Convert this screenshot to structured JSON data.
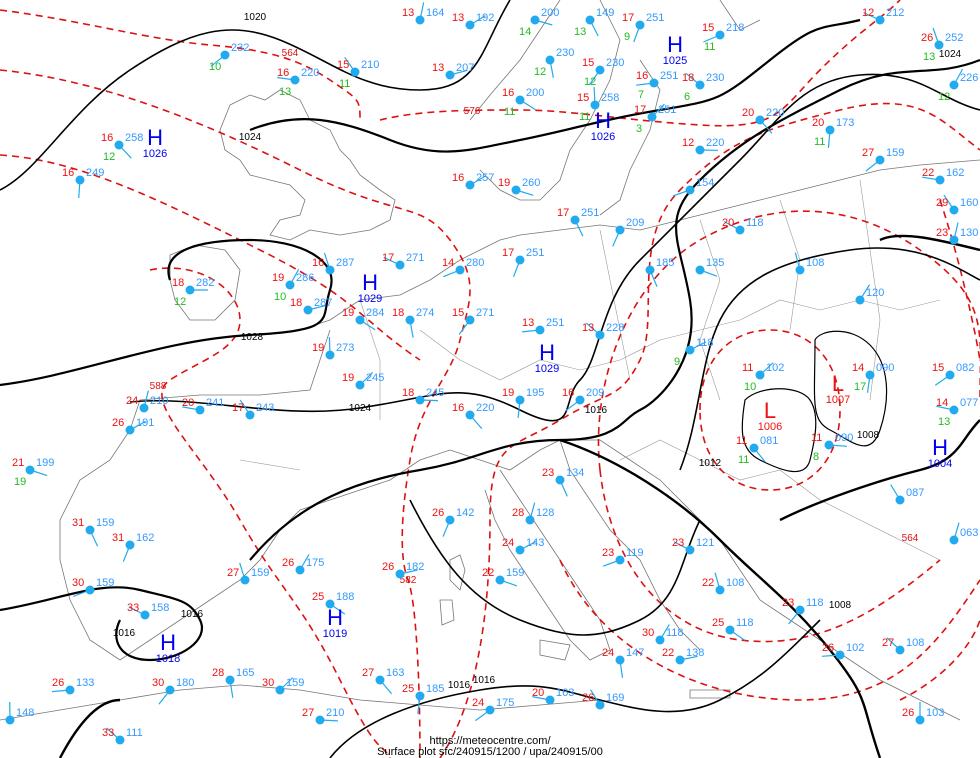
{
  "footer": {
    "url": "https://meteocentre.com/",
    "caption": "Surface plot sfc/240915/1200 / upa/240915/00"
  },
  "colors": {
    "temperature": "#ee1111",
    "dewpoint": "#22bb22",
    "pressure": "#3399ff",
    "station": "#22aaee",
    "isobar": "#000000",
    "thickness": "#dd1111",
    "coastline": "#777777",
    "high": "#0000ee",
    "low": "#ee1111",
    "weather_symbol": "#ee00ee"
  },
  "isobar_labels": [
    "1020",
    "1024",
    "1028",
    "1024",
    "1016",
    "1016",
    "1012",
    "1008",
    "1008",
    "1016",
    "1016",
    "1016",
    "1024"
  ],
  "thickness_labels": [
    "564",
    "576",
    "588",
    "582",
    "564"
  ],
  "pressure_centers": [
    {
      "type": "H",
      "value": "1026"
    },
    {
      "type": "H",
      "value": "1025"
    },
    {
      "type": "H",
      "value": "1026"
    },
    {
      "type": "H",
      "value": "1029"
    },
    {
      "type": "H",
      "value": "1029"
    },
    {
      "type": "H",
      "value": "1019"
    },
    {
      "type": "H",
      "value": "1018"
    },
    {
      "type": "H",
      "value": "1004"
    },
    {
      "type": "L",
      "value": "1006"
    },
    {
      "type": "L",
      "value": "1007"
    }
  ],
  "stations": [
    {
      "t": 18,
      "d": 12,
      "p": "282"
    },
    {
      "t": 16,
      "d": 12,
      "p": "258"
    },
    {
      "t": 16,
      "d": null,
      "p": "249"
    },
    {
      "t": null,
      "d": 10,
      "p": "232"
    },
    {
      "t": 16,
      "d": 13,
      "p": "220"
    },
    {
      "t": 15,
      "d": 11,
      "p": "210"
    },
    {
      "t": 13,
      "d": null,
      "p": "164"
    },
    {
      "t": 13,
      "d": null,
      "p": "192"
    },
    {
      "t": null,
      "d": 14,
      "p": "200"
    },
    {
      "t": null,
      "d": 13,
      "p": "149"
    },
    {
      "t": 17,
      "d": 9,
      "p": "251"
    },
    {
      "t": 15,
      "d": 11,
      "p": "218"
    },
    {
      "t": 12,
      "d": null,
      "p": "212"
    },
    {
      "t": 26,
      "d": 13,
      "p": "252"
    },
    {
      "t": null,
      "d": 12,
      "p": "226"
    },
    {
      "t": 13,
      "d": null,
      "p": "207"
    },
    {
      "t": 16,
      "d": 11,
      "p": "200"
    },
    {
      "t": null,
      "d": 12,
      "p": "230"
    },
    {
      "t": 15,
      "d": 12,
      "p": "230"
    },
    {
      "t": 16,
      "d": 7,
      "p": "251"
    },
    {
      "t": 18,
      "d": 6,
      "p": "230"
    },
    {
      "t": 15,
      "d": 11,
      "p": "258"
    },
    {
      "t": 17,
      "d": 3,
      "p": "251"
    },
    {
      "t": 12,
      "d": null,
      "p": "220"
    },
    {
      "t": 20,
      "d": null,
      "p": "220"
    },
    {
      "t": 20,
      "d": 11,
      "p": "173"
    },
    {
      "t": 27,
      "d": null,
      "p": "159"
    },
    {
      "t": 22,
      "d": null,
      "p": "162"
    },
    {
      "t": 29,
      "d": null,
      "p": "160"
    },
    {
      "t": 23,
      "d": null,
      "p": "130"
    },
    {
      "t": 16,
      "d": null,
      "p": "257"
    },
    {
      "t": 19,
      "d": null,
      "p": "260"
    },
    {
      "t": 17,
      "d": null,
      "p": "251"
    },
    {
      "t": 17,
      "d": null,
      "p": "251"
    },
    {
      "t": 14,
      "d": null,
      "p": "280"
    },
    {
      "t": 17,
      "d": null,
      "p": "271"
    },
    {
      "t": 16,
      "d": null,
      "p": "287"
    },
    {
      "t": 19,
      "d": 10,
      "p": "286"
    },
    {
      "t": 18,
      "d": null,
      "p": "287"
    },
    {
      "t": 19,
      "d": null,
      "p": "284"
    },
    {
      "t": 18,
      "d": null,
      "p": "274"
    },
    {
      "t": 15,
      "d": null,
      "p": "271"
    },
    {
      "t": 13,
      "d": null,
      "p": "251"
    },
    {
      "t": 13,
      "d": null,
      "p": "228"
    },
    {
      "t": 19,
      "d": null,
      "p": "273"
    },
    {
      "t": 19,
      "d": null,
      "p": "245"
    },
    {
      "t": 18,
      "d": null,
      "p": "245"
    },
    {
      "t": 16,
      "d": null,
      "p": "220"
    },
    {
      "t": 19,
      "d": null,
      "p": "195"
    },
    {
      "t": 16,
      "d": null,
      "p": "209"
    },
    {
      "t": 20,
      "d": null,
      "p": "241"
    },
    {
      "t": 17,
      "d": null,
      "p": "243"
    },
    {
      "t": 24,
      "d": null,
      "p": "210"
    },
    {
      "t": 26,
      "d": null,
      "p": "191"
    },
    {
      "t": 21,
      "d": 19,
      "p": "199"
    },
    {
      "t": 31,
      "d": null,
      "p": "159"
    },
    {
      "t": 31,
      "d": null,
      "p": "162"
    },
    {
      "t": 30,
      "d": null,
      "p": "159"
    },
    {
      "t": 33,
      "d": null,
      "p": "158"
    },
    {
      "t": 27,
      "d": null,
      "p": "159"
    },
    {
      "t": 26,
      "d": null,
      "p": "175"
    },
    {
      "t": 26,
      "d": null,
      "p": "182"
    },
    {
      "t": 25,
      "d": null,
      "p": "188"
    },
    {
      "t": 28,
      "d": null,
      "p": "165"
    },
    {
      "t": 30,
      "d": null,
      "p": "180"
    },
    {
      "t": 26,
      "d": null,
      "p": "133"
    },
    {
      "t": 33,
      "d": null,
      "p": "111"
    },
    {
      "t": null,
      "d": null,
      "p": "148"
    },
    {
      "t": 30,
      "d": null,
      "p": "159"
    },
    {
      "t": 27,
      "d": null,
      "p": "210"
    },
    {
      "t": 27,
      "d": null,
      "p": "163"
    },
    {
      "t": 25,
      "d": null,
      "p": "185"
    },
    {
      "t": 24,
      "d": null,
      "p": "175"
    },
    {
      "t": 20,
      "d": null,
      "p": "163"
    },
    {
      "t": 26,
      "d": null,
      "p": "169"
    },
    {
      "t": 28,
      "d": null,
      "p": "128"
    },
    {
      "t": 24,
      "d": null,
      "p": "143"
    },
    {
      "t": 22,
      "d": null,
      "p": "159"
    },
    {
      "t": 23,
      "d": null,
      "p": "134"
    },
    {
      "t": 26,
      "d": null,
      "p": "142"
    },
    {
      "t": 23,
      "d": null,
      "p": "119"
    },
    {
      "t": 23,
      "d": null,
      "p": "121"
    },
    {
      "t": 22,
      "d": null,
      "p": "108"
    },
    {
      "t": 30,
      "d": null,
      "p": "118"
    },
    {
      "t": 22,
      "d": null,
      "p": "138"
    },
    {
      "t": 25,
      "d": null,
      "p": "118"
    },
    {
      "t": 24,
      "d": null,
      "p": "147"
    },
    {
      "t": 23,
      "d": null,
      "p": "118"
    },
    {
      "t": 26,
      "d": null,
      "p": "102"
    },
    {
      "t": 27,
      "d": null,
      "p": "108"
    },
    {
      "t": 26,
      "d": null,
      "p": "103"
    },
    {
      "t": 11,
      "d": 10,
      "p": "102"
    },
    {
      "t": 11,
      "d": 8,
      "p": "090"
    },
    {
      "t": 11,
      "d": 11,
      "p": "081"
    },
    {
      "t": 14,
      "d": 17,
      "p": "090"
    },
    {
      "t": 15,
      "d": null,
      "p": "082"
    },
    {
      "t": 14,
      "d": 13,
      "p": "077"
    },
    {
      "t": null,
      "d": null,
      "p": "087"
    },
    {
      "t": null,
      "d": null,
      "p": "063"
    },
    {
      "t": null,
      "d": 9,
      "p": "118"
    },
    {
      "t": null,
      "d": null,
      "p": "135"
    },
    {
      "t": null,
      "d": null,
      "p": "185"
    },
    {
      "t": null,
      "d": null,
      "p": "209"
    },
    {
      "t": null,
      "d": null,
      "p": "154"
    },
    {
      "t": 20,
      "d": null,
      "p": "118"
    },
    {
      "t": null,
      "d": null,
      "p": "108"
    },
    {
      "t": null,
      "d": null,
      "p": "120"
    }
  ]
}
